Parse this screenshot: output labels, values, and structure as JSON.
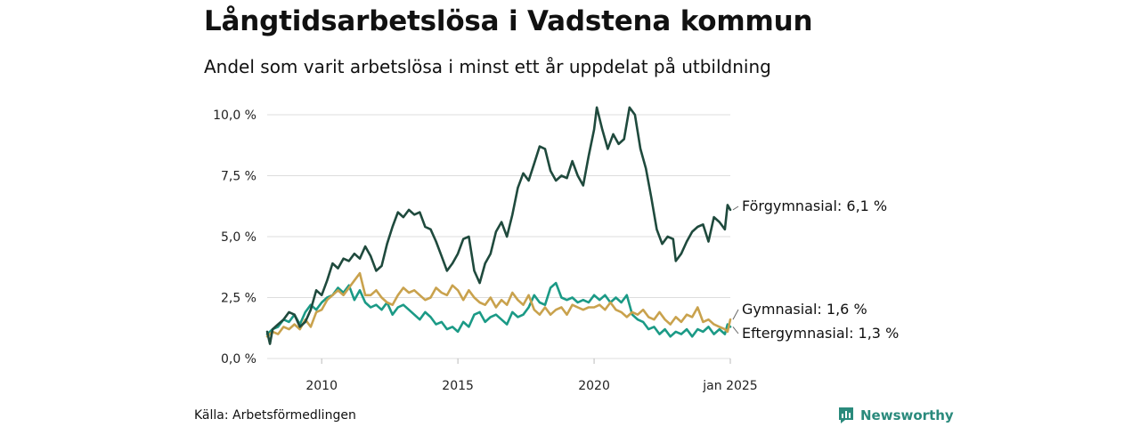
{
  "header": {
    "title": "Långtidsarbetslösa i Vadstena kommun",
    "subtitle": "Andel som varit arbetslösa i minst ett år uppdelat på utbildning"
  },
  "footer": {
    "source": "Källa: Arbetsförmedlingen",
    "brand": "Newsworthy"
  },
  "colors": {
    "forgymnasial": "#1f4a3d",
    "gymnasial": "#c9a24d",
    "eftergymnasial": "#1b9a86",
    "grid": "#dddddd",
    "brand": "#2a8a7c"
  },
  "chart_data": {
    "type": "line",
    "title": "Långtidsarbetslösa i Vadstena kommun",
    "xlabel": "",
    "ylabel": "",
    "ylim": [
      0,
      10
    ],
    "xlim": [
      2008.0,
      2025.0
    ],
    "y_ticks": [
      0,
      2.5,
      5,
      7.5,
      10
    ],
    "y_tick_labels": [
      "0,0 %",
      "2,5 %",
      "5,0 %",
      "7,5 %",
      "10,0 %"
    ],
    "x_ticks": [
      2010,
      2015,
      2020,
      2025
    ],
    "x_tick_labels": [
      "2010",
      "2015",
      "2020",
      "jan 2025"
    ],
    "series": [
      {
        "name": "Förgymnasial",
        "end_label": "Förgymnasial: 6,1 %",
        "color_key": "forgymnasial",
        "points": [
          [
            2008.0,
            1.1
          ],
          [
            2008.1,
            0.6
          ],
          [
            2008.2,
            1.2
          ],
          [
            2008.4,
            1.4
          ],
          [
            2008.6,
            1.6
          ],
          [
            2008.8,
            1.9
          ],
          [
            2009.0,
            1.8
          ],
          [
            2009.2,
            1.3
          ],
          [
            2009.4,
            1.5
          ],
          [
            2009.6,
            2.0
          ],
          [
            2009.8,
            2.8
          ],
          [
            2010.0,
            2.6
          ],
          [
            2010.2,
            3.2
          ],
          [
            2010.4,
            3.9
          ],
          [
            2010.6,
            3.7
          ],
          [
            2010.8,
            4.1
          ],
          [
            2011.0,
            4.0
          ],
          [
            2011.2,
            4.3
          ],
          [
            2011.4,
            4.1
          ],
          [
            2011.6,
            4.6
          ],
          [
            2011.8,
            4.2
          ],
          [
            2012.0,
            3.6
          ],
          [
            2012.2,
            3.8
          ],
          [
            2012.4,
            4.7
          ],
          [
            2012.6,
            5.4
          ],
          [
            2012.8,
            6.0
          ],
          [
            2013.0,
            5.8
          ],
          [
            2013.2,
            6.1
          ],
          [
            2013.4,
            5.9
          ],
          [
            2013.6,
            6.0
          ],
          [
            2013.8,
            5.4
          ],
          [
            2014.0,
            5.3
          ],
          [
            2014.2,
            4.8
          ],
          [
            2014.4,
            4.2
          ],
          [
            2014.6,
            3.6
          ],
          [
            2014.8,
            3.9
          ],
          [
            2015.0,
            4.3
          ],
          [
            2015.2,
            4.9
          ],
          [
            2015.4,
            5.0
          ],
          [
            2015.6,
            3.6
          ],
          [
            2015.8,
            3.1
          ],
          [
            2016.0,
            3.9
          ],
          [
            2016.2,
            4.3
          ],
          [
            2016.4,
            5.2
          ],
          [
            2016.6,
            5.6
          ],
          [
            2016.8,
            5.0
          ],
          [
            2017.0,
            5.9
          ],
          [
            2017.2,
            7.0
          ],
          [
            2017.4,
            7.6
          ],
          [
            2017.6,
            7.3
          ],
          [
            2017.8,
            8.0
          ],
          [
            2018.0,
            8.7
          ],
          [
            2018.2,
            8.6
          ],
          [
            2018.4,
            7.7
          ],
          [
            2018.6,
            7.3
          ],
          [
            2018.8,
            7.5
          ],
          [
            2019.0,
            7.4
          ],
          [
            2019.2,
            8.1
          ],
          [
            2019.4,
            7.5
          ],
          [
            2019.6,
            7.1
          ],
          [
            2019.8,
            8.3
          ],
          [
            2020.0,
            9.4
          ],
          [
            2020.1,
            10.3
          ],
          [
            2020.3,
            9.4
          ],
          [
            2020.5,
            8.6
          ],
          [
            2020.7,
            9.2
          ],
          [
            2020.9,
            8.8
          ],
          [
            2021.1,
            9.0
          ],
          [
            2021.3,
            10.3
          ],
          [
            2021.5,
            10.0
          ],
          [
            2021.7,
            8.6
          ],
          [
            2021.9,
            7.8
          ],
          [
            2022.1,
            6.6
          ],
          [
            2022.3,
            5.3
          ],
          [
            2022.5,
            4.7
          ],
          [
            2022.7,
            5.0
          ],
          [
            2022.9,
            4.9
          ],
          [
            2023.0,
            4.0
          ],
          [
            2023.2,
            4.3
          ],
          [
            2023.4,
            4.8
          ],
          [
            2023.6,
            5.2
          ],
          [
            2023.8,
            5.4
          ],
          [
            2024.0,
            5.5
          ],
          [
            2024.2,
            4.8
          ],
          [
            2024.4,
            5.8
          ],
          [
            2024.6,
            5.6
          ],
          [
            2024.8,
            5.3
          ],
          [
            2024.9,
            6.3
          ],
          [
            2025.0,
            6.1
          ]
        ]
      },
      {
        "name": "Gymnasial",
        "end_label": "Gymnasial: 1,6 %",
        "color_key": "gymnasial",
        "points": [
          [
            2008.0,
            0.9
          ],
          [
            2008.2,
            1.1
          ],
          [
            2008.4,
            1.0
          ],
          [
            2008.6,
            1.3
          ],
          [
            2008.8,
            1.2
          ],
          [
            2009.0,
            1.4
          ],
          [
            2009.2,
            1.2
          ],
          [
            2009.4,
            1.6
          ],
          [
            2009.6,
            1.3
          ],
          [
            2009.8,
            1.9
          ],
          [
            2010.0,
            2.0
          ],
          [
            2010.2,
            2.4
          ],
          [
            2010.4,
            2.6
          ],
          [
            2010.6,
            2.8
          ],
          [
            2010.8,
            2.6
          ],
          [
            2011.0,
            2.9
          ],
          [
            2011.2,
            3.2
          ],
          [
            2011.4,
            3.5
          ],
          [
            2011.6,
            2.6
          ],
          [
            2011.8,
            2.6
          ],
          [
            2012.0,
            2.8
          ],
          [
            2012.2,
            2.5
          ],
          [
            2012.4,
            2.3
          ],
          [
            2012.6,
            2.2
          ],
          [
            2012.8,
            2.6
          ],
          [
            2013.0,
            2.9
          ],
          [
            2013.2,
            2.7
          ],
          [
            2013.4,
            2.8
          ],
          [
            2013.6,
            2.6
          ],
          [
            2013.8,
            2.4
          ],
          [
            2014.0,
            2.5
          ],
          [
            2014.2,
            2.9
          ],
          [
            2014.4,
            2.7
          ],
          [
            2014.6,
            2.6
          ],
          [
            2014.8,
            3.0
          ],
          [
            2015.0,
            2.8
          ],
          [
            2015.2,
            2.4
          ],
          [
            2015.4,
            2.8
          ],
          [
            2015.6,
            2.5
          ],
          [
            2015.8,
            2.3
          ],
          [
            2016.0,
            2.2
          ],
          [
            2016.2,
            2.5
          ],
          [
            2016.4,
            2.1
          ],
          [
            2016.6,
            2.4
          ],
          [
            2016.8,
            2.2
          ],
          [
            2017.0,
            2.7
          ],
          [
            2017.2,
            2.4
          ],
          [
            2017.4,
            2.2
          ],
          [
            2017.6,
            2.6
          ],
          [
            2017.8,
            2.0
          ],
          [
            2018.0,
            1.8
          ],
          [
            2018.2,
            2.1
          ],
          [
            2018.4,
            1.8
          ],
          [
            2018.6,
            2.0
          ],
          [
            2018.8,
            2.1
          ],
          [
            2019.0,
            1.8
          ],
          [
            2019.2,
            2.2
          ],
          [
            2019.4,
            2.1
          ],
          [
            2019.6,
            2.0
          ],
          [
            2019.8,
            2.1
          ],
          [
            2020.0,
            2.1
          ],
          [
            2020.2,
            2.2
          ],
          [
            2020.4,
            2.0
          ],
          [
            2020.6,
            2.3
          ],
          [
            2020.8,
            2.0
          ],
          [
            2021.0,
            1.9
          ],
          [
            2021.2,
            1.7
          ],
          [
            2021.4,
            1.9
          ],
          [
            2021.6,
            1.8
          ],
          [
            2021.8,
            2.0
          ],
          [
            2022.0,
            1.7
          ],
          [
            2022.2,
            1.6
          ],
          [
            2022.4,
            1.9
          ],
          [
            2022.6,
            1.6
          ],
          [
            2022.8,
            1.4
          ],
          [
            2023.0,
            1.7
          ],
          [
            2023.2,
            1.5
          ],
          [
            2023.4,
            1.8
          ],
          [
            2023.6,
            1.7
          ],
          [
            2023.8,
            2.1
          ],
          [
            2024.0,
            1.5
          ],
          [
            2024.2,
            1.6
          ],
          [
            2024.4,
            1.4
          ],
          [
            2024.6,
            1.3
          ],
          [
            2024.8,
            1.2
          ],
          [
            2024.9,
            1.1
          ],
          [
            2025.0,
            1.6
          ]
        ]
      },
      {
        "name": "Eftergymnasial",
        "end_label": "Eftergymnasial: 1,3 %",
        "color_key": "eftergymnasial",
        "points": [
          [
            2008.0,
            1.0
          ],
          [
            2008.2,
            1.2
          ],
          [
            2008.4,
            1.3
          ],
          [
            2008.6,
            1.6
          ],
          [
            2008.8,
            1.5
          ],
          [
            2009.0,
            1.8
          ],
          [
            2009.2,
            1.4
          ],
          [
            2009.4,
            1.9
          ],
          [
            2009.6,
            2.2
          ],
          [
            2009.8,
            2.0
          ],
          [
            2010.0,
            2.3
          ],
          [
            2010.2,
            2.5
          ],
          [
            2010.4,
            2.6
          ],
          [
            2010.6,
            2.9
          ],
          [
            2010.8,
            2.7
          ],
          [
            2011.0,
            3.0
          ],
          [
            2011.2,
            2.4
          ],
          [
            2011.4,
            2.8
          ],
          [
            2011.6,
            2.3
          ],
          [
            2011.8,
            2.1
          ],
          [
            2012.0,
            2.2
          ],
          [
            2012.2,
            2.0
          ],
          [
            2012.4,
            2.3
          ],
          [
            2012.6,
            1.8
          ],
          [
            2012.8,
            2.1
          ],
          [
            2013.0,
            2.2
          ],
          [
            2013.2,
            2.0
          ],
          [
            2013.4,
            1.8
          ],
          [
            2013.6,
            1.6
          ],
          [
            2013.8,
            1.9
          ],
          [
            2014.0,
            1.7
          ],
          [
            2014.2,
            1.4
          ],
          [
            2014.4,
            1.5
          ],
          [
            2014.6,
            1.2
          ],
          [
            2014.8,
            1.3
          ],
          [
            2015.0,
            1.1
          ],
          [
            2015.2,
            1.5
          ],
          [
            2015.4,
            1.3
          ],
          [
            2015.6,
            1.8
          ],
          [
            2015.8,
            1.9
          ],
          [
            2016.0,
            1.5
          ],
          [
            2016.2,
            1.7
          ],
          [
            2016.4,
            1.8
          ],
          [
            2016.6,
            1.6
          ],
          [
            2016.8,
            1.4
          ],
          [
            2017.0,
            1.9
          ],
          [
            2017.2,
            1.7
          ],
          [
            2017.4,
            1.8
          ],
          [
            2017.6,
            2.1
          ],
          [
            2017.8,
            2.6
          ],
          [
            2018.0,
            2.3
          ],
          [
            2018.2,
            2.2
          ],
          [
            2018.4,
            2.9
          ],
          [
            2018.6,
            3.1
          ],
          [
            2018.8,
            2.5
          ],
          [
            2019.0,
            2.4
          ],
          [
            2019.2,
            2.5
          ],
          [
            2019.4,
            2.3
          ],
          [
            2019.6,
            2.4
          ],
          [
            2019.8,
            2.3
          ],
          [
            2020.0,
            2.6
          ],
          [
            2020.2,
            2.4
          ],
          [
            2020.4,
            2.6
          ],
          [
            2020.6,
            2.3
          ],
          [
            2020.8,
            2.5
          ],
          [
            2021.0,
            2.3
          ],
          [
            2021.2,
            2.6
          ],
          [
            2021.4,
            1.8
          ],
          [
            2021.6,
            1.6
          ],
          [
            2021.8,
            1.5
          ],
          [
            2022.0,
            1.2
          ],
          [
            2022.2,
            1.3
          ],
          [
            2022.4,
            1.0
          ],
          [
            2022.6,
            1.2
          ],
          [
            2022.8,
            0.9
          ],
          [
            2023.0,
            1.1
          ],
          [
            2023.2,
            1.0
          ],
          [
            2023.4,
            1.2
          ],
          [
            2023.6,
            0.9
          ],
          [
            2023.8,
            1.2
          ],
          [
            2024.0,
            1.1
          ],
          [
            2024.2,
            1.3
          ],
          [
            2024.4,
            1.0
          ],
          [
            2024.6,
            1.2
          ],
          [
            2024.8,
            1.0
          ],
          [
            2024.9,
            1.4
          ],
          [
            2025.0,
            1.3
          ]
        ]
      }
    ]
  }
}
